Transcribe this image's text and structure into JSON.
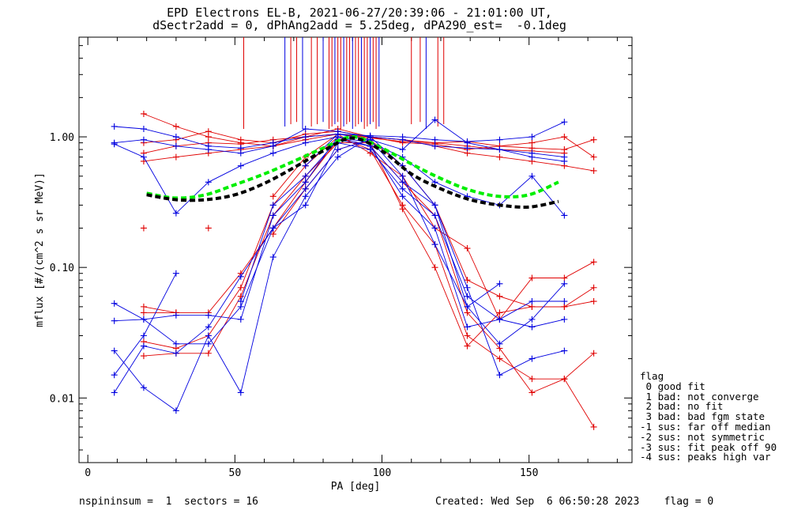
{
  "title": {
    "line1": "EPD Electrons EL-B, 2021-06-27/20:39:06 - 21:01:00 UT,",
    "line2": "dSectr2add = 0, dPhAng2add = 5.25deg, dPA290_est=  -0.1deg"
  },
  "footer": {
    "left": "nspininsum =  1  sectors = 16",
    "created": "Created: Wed Sep  6 06:50:28 2023",
    "flag": "flag = 0"
  },
  "legend": {
    "title": "flag",
    "items": [
      " 0 good fit",
      " 1 bad: not converge",
      " 2 bad: no fit",
      " 3 bad: bad fgm state",
      "-1 sus: far off median",
      "-2 sus: not symmetric",
      "-3 sus: fit peak off 90",
      "-4 sus: peaks high var"
    ]
  },
  "colors": {
    "red": "#e00000",
    "blue": "#0000e0",
    "green": "#00ee00",
    "black": "#000000"
  },
  "chart_data": {
    "type": "line",
    "xlabel": "PA [deg]",
    "ylabel": "mflux [#/(cm^2 s sr MeV)]",
    "xlim": [
      -3,
      185
    ],
    "ylim": [
      0.0032,
      5.8
    ],
    "yscale": "log",
    "xticks": [
      0,
      50,
      100,
      150
    ],
    "xtick_labels": [
      "0",
      "50",
      "100",
      "150"
    ],
    "yticks": [
      0.01,
      0.1,
      1.0
    ],
    "ytick_labels": [
      "0.01",
      "0.10",
      "1.00"
    ],
    "pa_samples": [
      9,
      19,
      30,
      41,
      52,
      63,
      74,
      85,
      96,
      107,
      118,
      129,
      140,
      151,
      162,
      172
    ],
    "series": [
      {
        "color": "red",
        "values": [
          null,
          0.75,
          0.85,
          0.9,
          0.88,
          0.95,
          1.0,
          1.05,
          0.98,
          0.92,
          0.9,
          0.85,
          0.8,
          0.78,
          0.75,
          null
        ]
      },
      {
        "color": "red",
        "values": [
          null,
          0.9,
          0.95,
          1.1,
          0.95,
          0.9,
          1.05,
          1.1,
          1.0,
          0.95,
          0.9,
          0.92,
          0.85,
          0.82,
          0.8,
          0.95
        ]
      },
      {
        "color": "red",
        "values": [
          null,
          1.5,
          1.2,
          1.0,
          0.9,
          0.85,
          1.0,
          1.15,
          1.0,
          0.9,
          0.88,
          0.8,
          0.85,
          0.9,
          1.0,
          0.7
        ]
      },
      {
        "color": "red",
        "values": [
          null,
          0.65,
          0.7,
          0.75,
          0.8,
          0.85,
          0.95,
          1.05,
          1.0,
          0.95,
          0.85,
          0.75,
          0.7,
          0.65,
          0.6,
          0.55
        ]
      },
      {
        "color": "red",
        "values": [
          null,
          0.2,
          null,
          0.2,
          null,
          null,
          null,
          null,
          null,
          null,
          null,
          null,
          null,
          null,
          null,
          null
        ]
      },
      {
        "color": "red",
        "values": [
          null,
          0.05,
          0.045,
          0.045,
          0.09,
          0.2,
          0.45,
          0.95,
          0.85,
          0.45,
          0.25,
          0.045,
          0.024,
          0.011,
          0.014,
          0.022
        ]
      },
      {
        "color": "red",
        "values": [
          null,
          0.027,
          0.024,
          0.03,
          0.07,
          0.3,
          0.6,
          1.0,
          0.8,
          0.3,
          0.15,
          0.03,
          0.02,
          0.014,
          0.014,
          0.006
        ]
      },
      {
        "color": "red",
        "values": [
          null,
          0.021,
          0.022,
          0.022,
          0.06,
          0.25,
          0.5,
          0.9,
          0.9,
          0.28,
          0.1,
          0.025,
          0.045,
          0.05,
          0.05,
          0.055
        ]
      },
      {
        "color": "red",
        "values": [
          null,
          0.045,
          0.045,
          null,
          null,
          0.35,
          0.7,
          1.05,
          0.75,
          0.5,
          0.2,
          0.14,
          0.04,
          0.083,
          0.083,
          0.11
        ]
      },
      {
        "color": "red",
        "values": [
          null,
          null,
          null,
          null,
          null,
          0.18,
          0.4,
          0.8,
          0.95,
          0.6,
          0.3,
          0.08,
          0.06,
          0.05,
          0.05,
          0.07
        ]
      },
      {
        "color": "blue",
        "values": [
          1.2,
          1.15,
          1.0,
          0.85,
          0.82,
          0.9,
          1.0,
          1.05,
          1.02,
          1.0,
          0.95,
          0.92,
          0.95,
          1.0,
          1.3,
          null
        ]
      },
      {
        "color": "blue",
        "values": [
          0.9,
          0.95,
          0.85,
          0.8,
          0.75,
          0.85,
          1.15,
          1.1,
          1.0,
          0.95,
          0.85,
          0.82,
          0.8,
          0.75,
          0.7,
          null
        ]
      },
      {
        "color": "blue",
        "values": [
          0.88,
          0.7,
          0.26,
          0.45,
          0.6,
          0.75,
          0.9,
          1.0,
          0.9,
          0.7,
          0.45,
          0.35,
          0.3,
          0.5,
          0.25,
          null
        ]
      },
      {
        "color": "blue",
        "values": [
          0.053,
          0.04,
          0.026,
          0.026,
          0.05,
          0.2,
          0.4,
          0.8,
          0.95,
          0.5,
          0.15,
          0.05,
          0.026,
          0.04,
          0.075,
          null
        ]
      },
      {
        "color": "blue",
        "values": [
          0.023,
          0.012,
          0.008,
          0.03,
          0.011,
          0.12,
          0.35,
          0.7,
          1.0,
          0.6,
          0.3,
          0.07,
          0.015,
          0.02,
          0.023,
          null
        ]
      },
      {
        "color": "blue",
        "values": [
          0.011,
          0.025,
          0.022,
          0.035,
          0.085,
          0.2,
          0.3,
          0.9,
          0.8,
          0.4,
          0.25,
          0.06,
          0.04,
          0.055,
          0.055,
          null
        ]
      },
      {
        "color": "blue",
        "values": [
          0.039,
          0.04,
          0.043,
          0.043,
          0.04,
          0.25,
          0.45,
          1.0,
          0.85,
          0.35,
          0.2,
          0.035,
          0.04,
          0.035,
          0.04,
          null
        ]
      },
      {
        "color": "blue",
        "values": [
          0.015,
          0.03,
          0.09,
          null,
          0.055,
          0.3,
          0.5,
          0.95,
          0.85,
          0.45,
          0.3,
          0.05,
          0.075,
          null,
          null,
          null
        ]
      },
      {
        "color": "blue",
        "values": [
          null,
          null,
          null,
          null,
          null,
          null,
          0.6,
          1.05,
          0.95,
          0.8,
          1.35,
          0.9,
          0.8,
          0.7,
          0.65,
          null
        ]
      }
    ],
    "spikes_x": [
      53,
      67,
      69,
      71,
      73,
      76,
      78,
      80,
      82,
      83,
      84,
      85,
      86,
      87,
      88,
      89,
      90,
      91,
      92,
      93,
      94,
      95,
      96,
      97,
      98,
      99,
      110,
      113,
      115,
      119,
      121
    ],
    "fits": [
      {
        "color": "green",
        "x": [
          20,
          30,
          40,
          50,
          60,
          70,
          80,
          90,
          100,
          110,
          120,
          130,
          140,
          150,
          160
        ],
        "y": [
          0.37,
          0.34,
          0.36,
          0.43,
          0.52,
          0.65,
          0.82,
          1.0,
          0.82,
          0.62,
          0.48,
          0.39,
          0.35,
          0.36,
          0.45
        ]
      },
      {
        "color": "black",
        "x": [
          20,
          30,
          40,
          50,
          60,
          70,
          80,
          90,
          100,
          110,
          120,
          130,
          140,
          150,
          160
        ],
        "y": [
          0.36,
          0.33,
          0.33,
          0.36,
          0.44,
          0.58,
          0.78,
          0.98,
          0.78,
          0.52,
          0.4,
          0.33,
          0.3,
          0.29,
          0.32
        ]
      }
    ]
  }
}
